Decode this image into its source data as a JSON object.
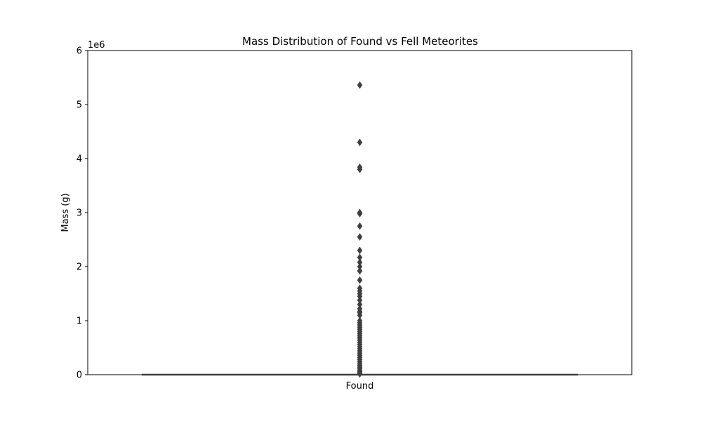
{
  "chart_data": {
    "type": "box",
    "title": "Mass Distribution of Found vs Fell Meteorites",
    "xlabel": "",
    "ylabel": "Mass (g)",
    "y_offset_label": "1e6",
    "ylim": [
      0,
      6000000
    ],
    "yticks": [
      0,
      1000000,
      2000000,
      3000000,
      4000000,
      5000000,
      6000000
    ],
    "ytick_labels": [
      "0",
      "1",
      "2",
      "3",
      "4",
      "5",
      "6"
    ],
    "categories": [
      "Found"
    ],
    "box": {
      "median": 30,
      "q1": 5,
      "q3": 300,
      "whisker_low": 0,
      "whisker_high": 700,
      "color": "#3f3f3f"
    },
    "outliers": [
      5360000,
      4300000,
      3840000,
      3800000,
      3000000,
      2980000,
      2750000,
      2550000,
      2300000,
      2170000,
      2080000,
      2000000,
      1920000,
      1750000,
      1600000,
      1550000,
      1500000,
      1450000,
      1380000,
      1300000,
      1220000,
      1170000,
      1150000,
      1100000,
      1000000,
      960000,
      920000,
      880000,
      840000,
      800000,
      760000,
      720000,
      680000,
      640000,
      600000,
      560000,
      520000,
      480000,
      440000,
      400000,
      360000,
      320000,
      280000,
      240000,
      200000,
      170000,
      140000,
      110000,
      80000,
      60000,
      40000,
      25000,
      15000
    ],
    "grid": false,
    "marker": "diamond",
    "marker_color": "#3f3f3f"
  }
}
